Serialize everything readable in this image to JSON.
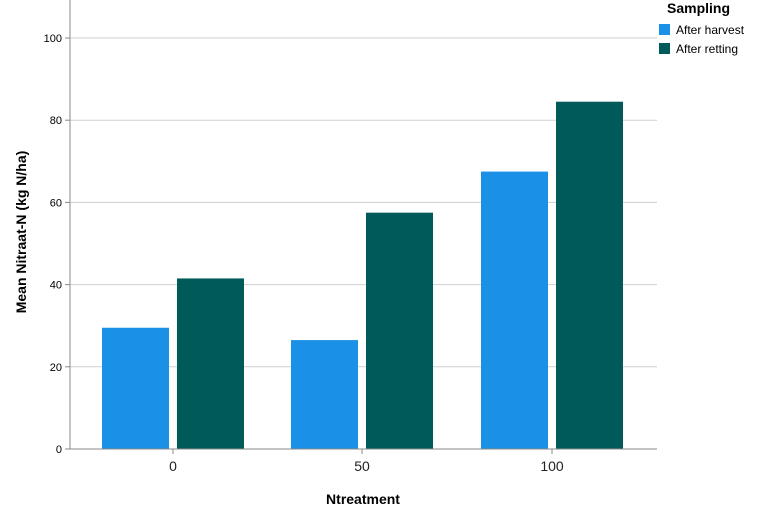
{
  "chart_data": {
    "type": "bar",
    "title": "",
    "xlabel": "Ntreatment",
    "ylabel": "Mean Nitraat-N (kg N/ha)",
    "categories": [
      "0",
      "50",
      "100"
    ],
    "series": [
      {
        "name": "After harvest",
        "color": "#1a91e6",
        "values": [
          29.5,
          26.5,
          67.5
        ]
      },
      {
        "name": "After retting",
        "color": "#005a5a",
        "values": [
          41.5,
          57.5,
          84.5
        ]
      }
    ],
    "ylim": [
      0,
      110
    ],
    "yticks": [
      0,
      20,
      40,
      60,
      80,
      100
    ],
    "grid": true,
    "legend": {
      "title": "Sampling",
      "placement": "top-right"
    }
  }
}
